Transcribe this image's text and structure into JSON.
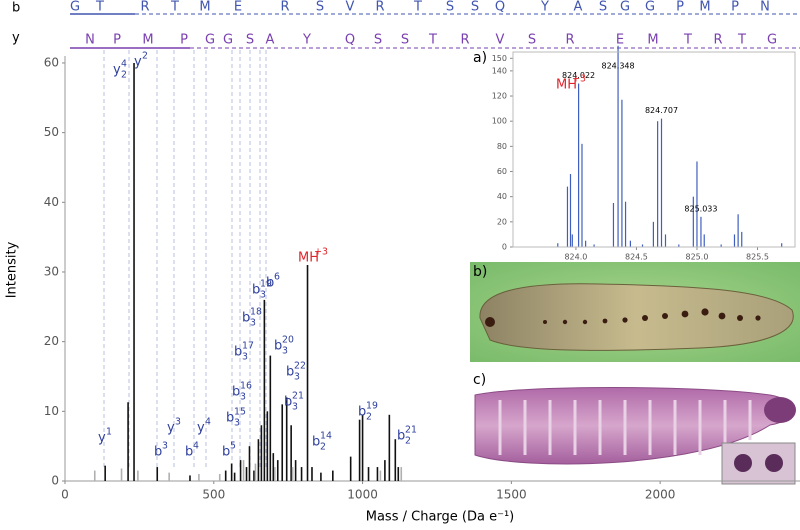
{
  "sequence": {
    "b_label": "b",
    "b": [
      "G",
      "T",
      "R",
      "T",
      "M",
      "E",
      "R",
      "S",
      "V",
      "R",
      "T",
      "S",
      "S",
      "Q",
      "Y",
      "A",
      "S",
      "G",
      "G",
      "P",
      "M",
      "P",
      "N"
    ],
    "y_label": "y",
    "y": [
      "N",
      "P",
      "M",
      "P",
      "G",
      "G",
      "S",
      "A",
      "Y",
      "Q",
      "S",
      "S",
      "T",
      "R",
      "V",
      "S",
      "R",
      "E",
      "M",
      "T",
      "R",
      "T",
      "G"
    ]
  },
  "chart_data": [
    {
      "type": "bar",
      "x_label": "Mass / Charge (Da e⁻¹)",
      "y_label": "Intensity",
      "xlim": [
        0,
        2470
      ],
      "xticks": [
        0,
        500,
        1000,
        1500,
        2000
      ],
      "ylim": [
        0,
        61
      ],
      "yticks": [
        0,
        10,
        20,
        30,
        40,
        50,
        60
      ],
      "series": [
        {
          "color": "#111111",
          "x": [
            135,
            212,
            232,
            310,
            420,
            540,
            560,
            570,
            590,
            610,
            620,
            635,
            650,
            660,
            670,
            680,
            690,
            700,
            715,
            730,
            745,
            760,
            775,
            795,
            815,
            830,
            860,
            900,
            960,
            990,
            1000,
            1020,
            1050,
            1075,
            1090,
            1110,
            1120
          ],
          "values": [
            2.2,
            11.3,
            60,
            2.0,
            0.8,
            1.5,
            2.5,
            1.2,
            3,
            2,
            5,
            1.5,
            6,
            8,
            26,
            10,
            18,
            4,
            3,
            11,
            12,
            8,
            3,
            2,
            31,
            2,
            1.2,
            1.5,
            3.5,
            8.8,
            9.5,
            2,
            2,
            3,
            9.5,
            6,
            2
          ]
        },
        {
          "color": "#b0b0b0",
          "x": [
            100,
            190,
            245,
            350,
            450,
            520,
            600,
            640,
            705,
            765,
            1060,
            1130
          ],
          "values": [
            1.5,
            1.8,
            1.5,
            1.2,
            1,
            1,
            3,
            2.5,
            2,
            2,
            1.5,
            2
          ]
        }
      ],
      "annotations": [
        {
          "ion": "y",
          "sup": "1"
        },
        {
          "ion": "y",
          "sub": "2",
          "sup": "4"
        },
        {
          "ion": "y",
          "sup": "2"
        },
        {
          "ion": "b",
          "sup": "3"
        },
        {
          "ion": "y",
          "sup": "3"
        },
        {
          "ion": "b",
          "sup": "4"
        },
        {
          "ion": "y",
          "sup": "4"
        },
        {
          "ion": "b",
          "sup": "5"
        },
        {
          "ion": "b",
          "sub": "3",
          "sup": "15"
        },
        {
          "ion": "b",
          "sub": "3",
          "sup": "16"
        },
        {
          "ion": "b",
          "sub": "3",
          "sup": "17"
        },
        {
          "ion": "b",
          "sub": "3",
          "sup": "18"
        },
        {
          "ion": "b",
          "sub": "3",
          "sup": "19"
        },
        {
          "ion": "b",
          "sup": "6"
        },
        {
          "ion": "b",
          "sub": "3",
          "sup": "20"
        },
        {
          "ion": "b",
          "sub": "3",
          "sup": "21"
        },
        {
          "ion": "b",
          "sub": "3",
          "sup": "22"
        },
        {
          "ion": "b",
          "sub": "2",
          "sup": "14"
        },
        {
          "ion": "MH",
          "sup": "+3",
          "color": "#e0242a"
        },
        {
          "ion": "b",
          "sub": "2",
          "sup": "19"
        },
        {
          "ion": "b",
          "sub": "2",
          "sup": "21"
        }
      ]
    },
    {
      "type": "bar",
      "panel_label": "a)",
      "xlim": [
        823.48,
        825.81
      ],
      "xticks": [
        {
          "value": 824.0,
          "label": "824.0"
        },
        824.5,
        {
          "value": 825.0,
          "label": "825.0"
        },
        825.5
      ],
      "ylim": [
        0,
        155
      ],
      "yticks": [
        0,
        20,
        40,
        60,
        80,
        100,
        120,
        140,
        150
      ],
      "series": [
        {
          "color": "#3f5fc0",
          "x": [
            823.85,
            823.93,
            823.955,
            823.97,
            824.022,
            824.05,
            824.08,
            824.15,
            824.31,
            824.348,
            824.38,
            824.41,
            824.45,
            824.55,
            824.64,
            824.675,
            824.707,
            824.74,
            824.85,
            824.97,
            825.0,
            825.033,
            825.06,
            825.2,
            825.31,
            825.34,
            825.37,
            825.7
          ],
          "values": [
            3,
            48,
            58,
            10,
            130,
            82,
            5,
            2,
            35,
            160,
            117,
            36,
            5,
            2,
            20,
            100,
            102,
            10,
            2,
            40,
            68,
            24,
            10,
            2,
            10,
            26,
            12,
            3
          ]
        }
      ],
      "peak_labels": [
        824.022,
        824.348,
        824.707,
        825.033
      ],
      "annotation": {
        "ion": "MH",
        "sup": "+3",
        "color": "#e0242a"
      }
    }
  ],
  "image_panels": [
    {
      "label": "b)"
    },
    {
      "label": "c)"
    }
  ]
}
